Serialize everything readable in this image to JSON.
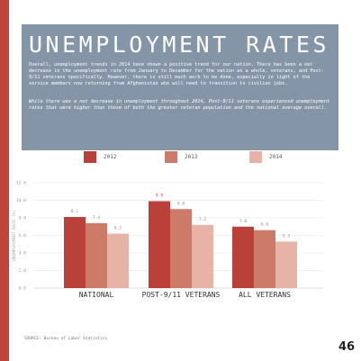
{
  "header": {
    "title": "UNEMPLOYMENT RATES",
    "paragraph1": "Overall, unemployment trends in 2014 have shown a positive trend for our nation. There has been a net decrease in the unemployment rate from January to December for the nation as a whole, veterans, and Post-9/11 veterans specifically. However, there is still much work to be done, especially in light of the service members now returning from Afghanistan who will need to transition to civilian jobs.",
    "paragraph2": "While there was a net decrease in unemployment throughout 2014, Post-9/11 veterans experienced unemployment rates that were higher than those of both the greater veteran population and the national average overall."
  },
  "footer": {
    "source": "SOURCE: Bureau of Labor Statistics",
    "page_number": "46"
  },
  "colors": {
    "accent": "#c0443a",
    "header_bg": "#8495a8"
  },
  "chart_data": {
    "type": "bar",
    "title": "",
    "xlabel": "",
    "ylabel": "UNEMPLOYMENT RATE (%)",
    "ylim": [
      0,
      12
    ],
    "yticks": [
      "0.0",
      "2.0",
      "4.0",
      "6.0",
      "8.0",
      "10.0",
      "12.0"
    ],
    "grid": true,
    "legend_position": "top-center",
    "categories": [
      "NATIONAL",
      "POST-9/11 VETERANS",
      "ALL VETERANS"
    ],
    "series": [
      {
        "name": "2012",
        "color": "#b9413a",
        "values": [
          8.1,
          9.9,
          7.0
        ],
        "labels": [
          "8.1",
          "9.9",
          "7.0"
        ]
      },
      {
        "name": "2013",
        "color": "#cd7b69",
        "values": [
          7.4,
          9.0,
          6.6
        ],
        "labels": [
          "7.4",
          "9.0",
          "6.6"
        ]
      },
      {
        "name": "2014",
        "color": "#e6b4a7",
        "values": [
          6.2,
          7.2,
          5.3
        ],
        "labels": [
          "6.2",
          "7.2",
          "5.3"
        ]
      }
    ]
  }
}
